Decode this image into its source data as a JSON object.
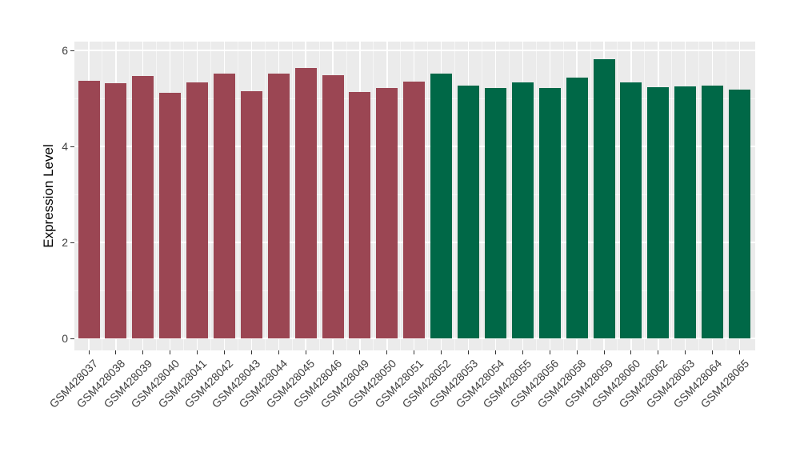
{
  "chart_data": {
    "type": "bar",
    "title": "",
    "xlabel": "",
    "ylabel": "Expression Level",
    "ylim": [
      0,
      6.2
    ],
    "yticks": [
      0,
      2,
      4,
      6
    ],
    "ytick_labels": [
      "0",
      "2",
      "4",
      "6"
    ],
    "yminor": [
      1,
      3,
      5
    ],
    "grid": "on",
    "legend": "none",
    "panel_background": "#EBEBEB",
    "gridline_color": "#FFFFFF",
    "categories": [
      "GSM428037",
      "GSM428038",
      "GSM428039",
      "GSM428040",
      "GSM428041",
      "GSM428042",
      "GSM428043",
      "GSM428044",
      "GSM428045",
      "GSM428046",
      "GSM428049",
      "GSM428050",
      "GSM428051",
      "GSM428052",
      "GSM428053",
      "GSM428054",
      "GSM428055",
      "GSM428056",
      "GSM428058",
      "GSM428059",
      "GSM428060",
      "GSM428062",
      "GSM428063",
      "GSM428064",
      "GSM428065"
    ],
    "values": [
      5.36,
      5.31,
      5.46,
      5.12,
      5.33,
      5.51,
      5.15,
      5.51,
      5.63,
      5.49,
      5.13,
      5.22,
      5.35,
      5.52,
      5.27,
      5.22,
      5.34,
      5.22,
      5.43,
      5.82,
      5.34,
      5.23,
      5.25,
      5.26,
      5.19
    ],
    "bar_groups": [
      0,
      0,
      0,
      0,
      0,
      0,
      0,
      0,
      0,
      0,
      0,
      0,
      0,
      1,
      1,
      1,
      1,
      1,
      1,
      1,
      1,
      1,
      1,
      1,
      1
    ],
    "group_colors": [
      "#9B4653",
      "#006847"
    ]
  }
}
